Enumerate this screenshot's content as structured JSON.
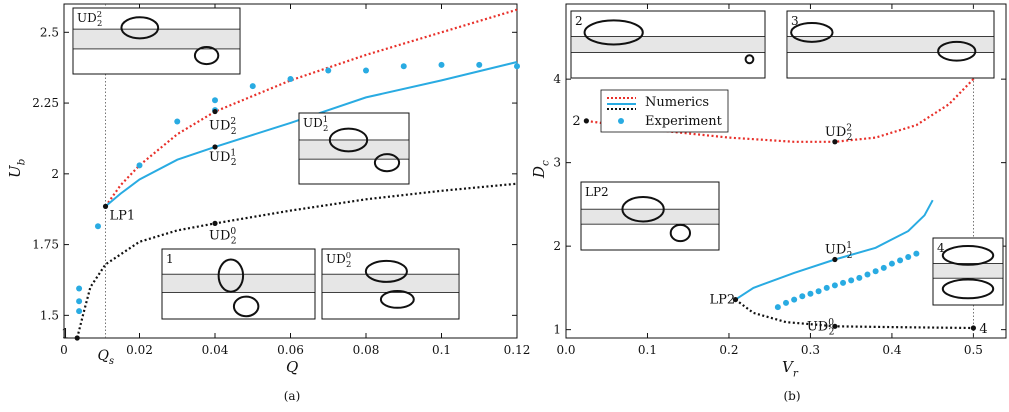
{
  "colors": {
    "numerics_red": "#e8302a",
    "experiment_blue": "#29abe2",
    "numerics_cyan": "#29abe2",
    "black": "#111111"
  },
  "chart_data": [
    {
      "type": "line",
      "panel_label": "(a)",
      "xlabel": "Q",
      "ylabel": "U",
      "ylabel_sub": "b",
      "xlim": [
        0,
        0.12
      ],
      "ylim": [
        1.42,
        2.6
      ],
      "xticks": [
        0,
        0.02,
        0.04,
        0.06,
        0.08,
        0.1,
        0.12
      ],
      "xtick_labels": [
        "0",
        "0.02",
        "0.04",
        "0.06",
        "0.08",
        "0.1",
        "0.12"
      ],
      "yticks": [
        1.5,
        1.75,
        2,
        2.25,
        2.5
      ],
      "ytick_labels": [
        "1.5",
        "1.75",
        "2",
        "2.25",
        "2.5"
      ],
      "vline_x": 0.011,
      "vline_label": "Q",
      "vline_label_sub": "s",
      "series": [
        {
          "style": "dotted",
          "color": "#e8302a",
          "points": [
            [
              0.011,
              1.885
            ],
            [
              0.015,
              1.96
            ],
            [
              0.02,
              2.03
            ],
            [
              0.03,
              2.14
            ],
            [
              0.04,
              2.22
            ],
            [
              0.06,
              2.33
            ],
            [
              0.08,
              2.42
            ],
            [
              0.1,
              2.5
            ],
            [
              0.12,
              2.58
            ]
          ]
        },
        {
          "style": "solid",
          "color": "#29abe2",
          "points": [
            [
              0.011,
              1.885
            ],
            [
              0.015,
              1.93
            ],
            [
              0.02,
              1.98
            ],
            [
              0.03,
              2.05
            ],
            [
              0.04,
              2.095
            ],
            [
              0.06,
              2.18
            ],
            [
              0.08,
              2.27
            ],
            [
              0.1,
              2.33
            ],
            [
              0.12,
              2.395
            ]
          ]
        },
        {
          "style": "dotted",
          "color": "#111111",
          "points": [
            [
              0.0035,
              1.42
            ],
            [
              0.005,
              1.5
            ],
            [
              0.007,
              1.6
            ],
            [
              0.011,
              1.68
            ],
            [
              0.02,
              1.76
            ],
            [
              0.03,
              1.8
            ],
            [
              0.04,
              1.825
            ],
            [
              0.06,
              1.87
            ],
            [
              0.08,
              1.91
            ],
            [
              0.1,
              1.94
            ],
            [
              0.12,
              1.965
            ]
          ]
        },
        {
          "style": "markers",
          "color": "#29abe2",
          "points": [
            [
              0.004,
              1.515
            ],
            [
              0.004,
              1.55
            ],
            [
              0.004,
              1.595
            ],
            [
              0.009,
              1.815
            ],
            [
              0.02,
              2.03
            ],
            [
              0.03,
              2.185
            ],
            [
              0.04,
              2.225
            ],
            [
              0.04,
              2.26
            ],
            [
              0.05,
              2.31
            ],
            [
              0.06,
              2.335
            ],
            [
              0.07,
              2.365
            ],
            [
              0.08,
              2.365
            ],
            [
              0.09,
              2.38
            ],
            [
              0.1,
              2.385
            ],
            [
              0.11,
              2.385
            ],
            [
              0.12,
              2.38
            ]
          ]
        }
      ],
      "marked_points": [
        {
          "x": 0.011,
          "y": 1.885,
          "label": "LP1",
          "sub": "",
          "sup": ""
        },
        {
          "x": 0.04,
          "y": 2.22,
          "label": "UD",
          "sub": "2",
          "sup": "2"
        },
        {
          "x": 0.04,
          "y": 2.095,
          "label": "UD",
          "sub": "2",
          "sup": "1"
        },
        {
          "x": 0.04,
          "y": 1.825,
          "label": "UD",
          "sub": "2",
          "sup": "0"
        },
        {
          "x": 0.0035,
          "y": 1.42,
          "label": "1",
          "sub": "",
          "sup": ""
        }
      ],
      "insets": [
        {
          "label": "UD",
          "sub": "2",
          "sup": "2"
        },
        {
          "label": "UD",
          "sub": "2",
          "sup": "1"
        },
        {
          "label": "1",
          "sub": "",
          "sup": ""
        },
        {
          "label": "UD",
          "sub": "2",
          "sup": "0"
        }
      ]
    },
    {
      "type": "line",
      "panel_label": "(b)",
      "xlabel": "V",
      "xlabel_sub": "r",
      "ylabel": "D",
      "ylabel_sub": "c",
      "xlim": [
        0,
        0.54
      ],
      "ylim": [
        0.9,
        4.9
      ],
      "xticks": [
        0,
        0.1,
        0.2,
        0.3,
        0.4,
        0.5
      ],
      "xtick_labels": [
        "0.0",
        "0.1",
        "0.2",
        "0.3",
        "0.4",
        "0.5"
      ],
      "yticks": [
        1,
        2,
        3,
        4
      ],
      "ytick_labels": [
        "1",
        "2",
        "3",
        "4"
      ],
      "vline_x": 0.5,
      "legend": {
        "location": "upper-left",
        "entries": [
          "Numerics",
          "Experiment"
        ]
      },
      "series": [
        {
          "style": "dotted",
          "color": "#e8302a",
          "points": [
            [
              0.025,
              3.5
            ],
            [
              0.1,
              3.4
            ],
            [
              0.2,
              3.3
            ],
            [
              0.28,
              3.25
            ],
            [
              0.33,
              3.25
            ],
            [
              0.38,
              3.3
            ],
            [
              0.43,
              3.45
            ],
            [
              0.47,
              3.7
            ],
            [
              0.5,
              4.0
            ],
            [
              0.51,
              4.3
            ]
          ]
        },
        {
          "style": "solid",
          "color": "#29abe2",
          "points": [
            [
              0.208,
              1.36
            ],
            [
              0.23,
              1.5
            ],
            [
              0.28,
              1.68
            ],
            [
              0.33,
              1.84
            ],
            [
              0.38,
              1.98
            ],
            [
              0.42,
              2.18
            ],
            [
              0.44,
              2.37
            ],
            [
              0.45,
              2.55
            ]
          ]
        },
        {
          "style": "dotted",
          "color": "#111111",
          "points": [
            [
              0.208,
              1.36
            ],
            [
              0.23,
              1.2
            ],
            [
              0.27,
              1.09
            ],
            [
              0.33,
              1.04
            ],
            [
              0.4,
              1.03
            ],
            [
              0.5,
              1.02
            ]
          ]
        },
        {
          "style": "markers",
          "color": "#29abe2",
          "points": [
            [
              0.26,
              1.27
            ],
            [
              0.27,
              1.32
            ],
            [
              0.28,
              1.36
            ],
            [
              0.29,
              1.4
            ],
            [
              0.3,
              1.43
            ],
            [
              0.31,
              1.46
            ],
            [
              0.32,
              1.5
            ],
            [
              0.33,
              1.53
            ],
            [
              0.34,
              1.56
            ],
            [
              0.35,
              1.59
            ],
            [
              0.36,
              1.62
            ],
            [
              0.37,
              1.66
            ],
            [
              0.38,
              1.7
            ],
            [
              0.39,
              1.74
            ],
            [
              0.4,
              1.79
            ],
            [
              0.41,
              1.83
            ],
            [
              0.42,
              1.87
            ],
            [
              0.43,
              1.91
            ]
          ]
        }
      ],
      "marked_points": [
        {
          "x": 0.025,
          "y": 3.5,
          "label": "2",
          "sub": "",
          "sup": ""
        },
        {
          "x": 0.51,
          "y": 4.3,
          "label": "3",
          "sub": "",
          "sup": ""
        },
        {
          "x": 0.33,
          "y": 3.25,
          "label": "UD",
          "sub": "2",
          "sup": "2"
        },
        {
          "x": 0.33,
          "y": 1.84,
          "label": "UD",
          "sub": "2",
          "sup": "1"
        },
        {
          "x": 0.33,
          "y": 1.04,
          "label": "UD",
          "sub": "2",
          "sup": "0"
        },
        {
          "x": 0.208,
          "y": 1.36,
          "label": "LP2",
          "sub": "",
          "sup": ""
        },
        {
          "x": 0.5,
          "y": 1.02,
          "label": "4",
          "sub": "",
          "sup": ""
        }
      ],
      "insets": [
        {
          "label": "2",
          "sub": "",
          "sup": ""
        },
        {
          "label": "3",
          "sub": "",
          "sup": ""
        },
        {
          "label": "LP2",
          "sub": "",
          "sup": ""
        },
        {
          "label": "4",
          "sub": "",
          "sup": ""
        }
      ]
    }
  ]
}
